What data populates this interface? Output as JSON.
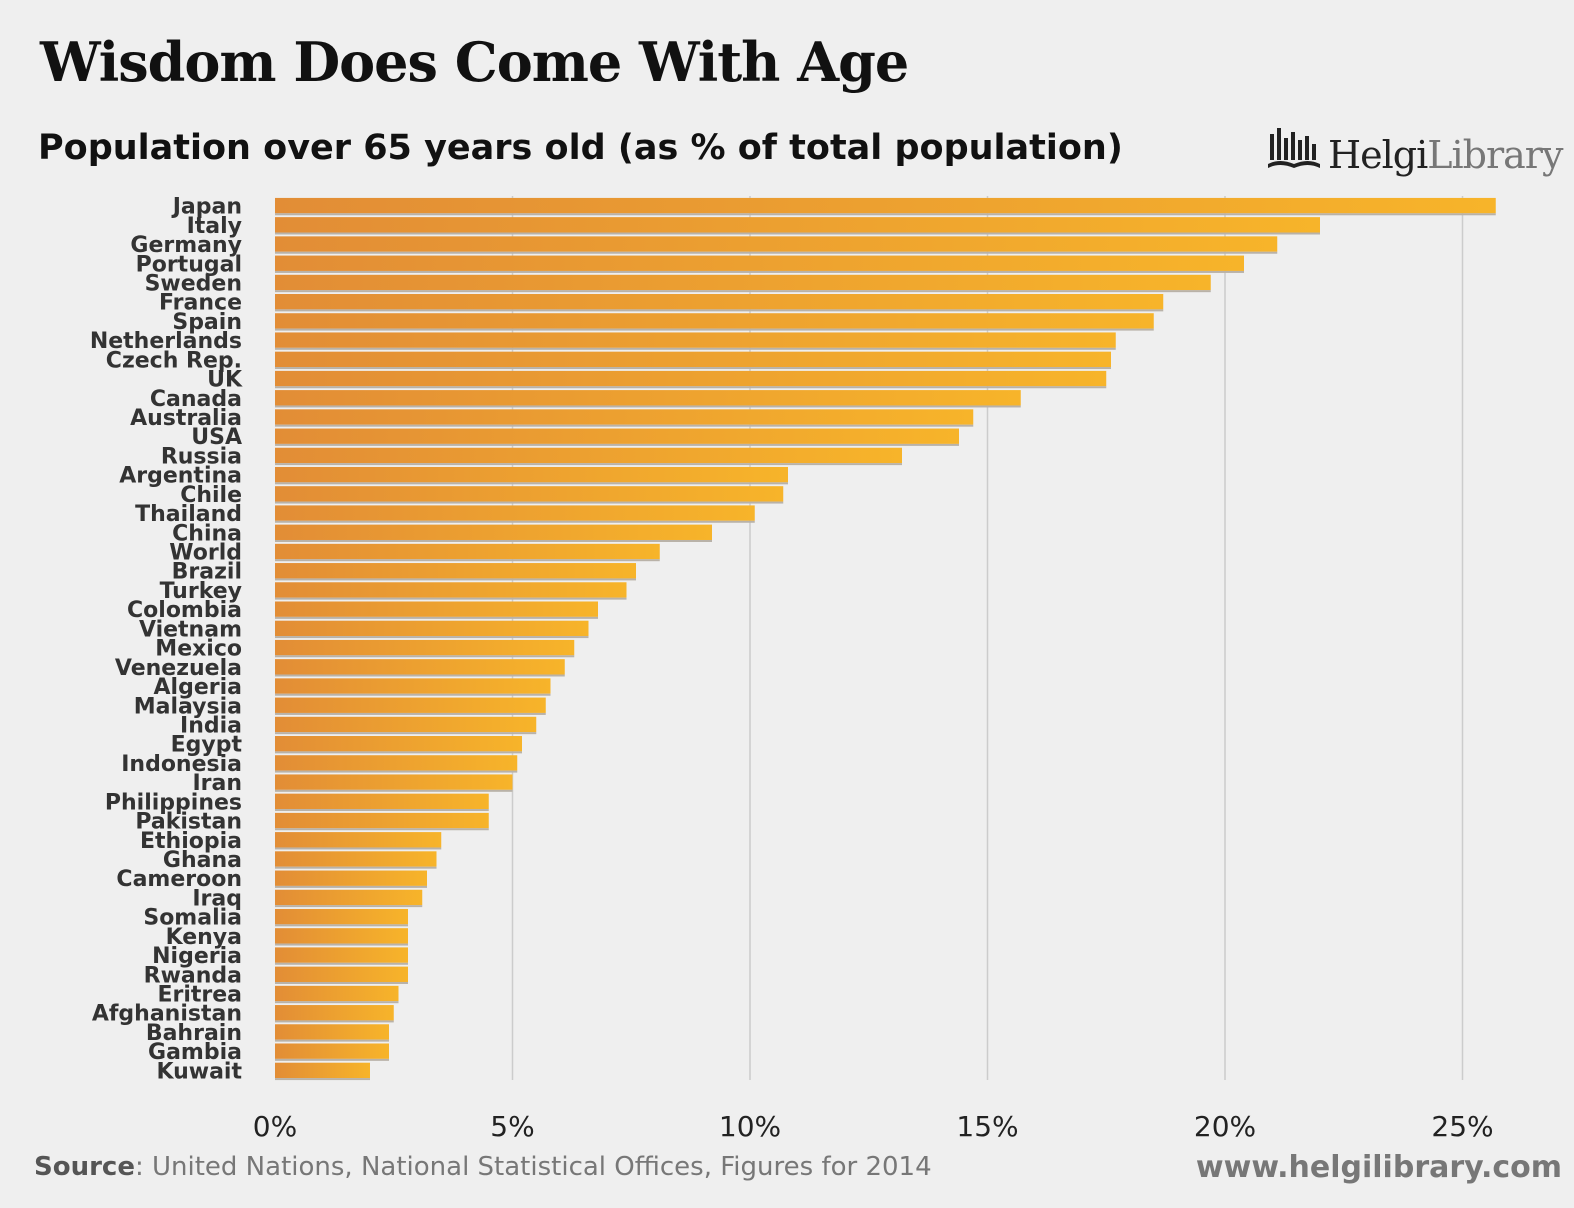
{
  "header": {
    "title": "Wisdom Does Come With Age",
    "subtitle": "Population over 65 years old (as % of total population)"
  },
  "logo": {
    "brand_strong": "Helgi",
    "brand_light": "Library"
  },
  "footer": {
    "source_label": "Source",
    "source_text": ": United Nations, National Statistical Offices, Figures for 2014",
    "website": "www.helgilibrary.com"
  },
  "colors": {
    "bar_start": "#e28d36",
    "bar_end": "#f7b42a",
    "gridline": "#cccccc",
    "background": "#efefef"
  },
  "chart_data": {
    "type": "bar",
    "orientation": "horizontal",
    "title": "Wisdom Does Come With Age",
    "subtitle": "Population over 65 years old (as % of total population)",
    "xlabel": "",
    "ylabel": "",
    "xlim": [
      0,
      26
    ],
    "ticks": [
      0,
      5,
      10,
      15,
      20,
      25
    ],
    "tick_labels": [
      "0%",
      "5%",
      "10%",
      "15%",
      "20%",
      "25%"
    ],
    "grid": true,
    "categories": [
      "Japan",
      "Italy",
      "Germany",
      "Portugal",
      "Sweden",
      "France",
      "Spain",
      "Netherlands",
      "Czech Rep.",
      "UK",
      "Canada",
      "Australia",
      "USA",
      "Russia",
      "Argentina",
      "Chile",
      "Thailand",
      "China",
      "World",
      "Brazil",
      "Turkey",
      "Colombia",
      "Vietnam",
      "Mexico",
      "Venezuela",
      "Algeria",
      "Malaysia",
      "India",
      "Egypt",
      "Indonesia",
      "Iran",
      "Philippines",
      "Pakistan",
      "Ethiopia",
      "Ghana",
      "Cameroon",
      "Iraq",
      "Somalia",
      "Kenya",
      "Nigeria",
      "Rwanda",
      "Eritrea",
      "Afghanistan",
      "Bahrain",
      "Gambia",
      "Kuwait"
    ],
    "values": [
      25.7,
      22.0,
      21.1,
      20.4,
      19.7,
      18.7,
      18.5,
      17.7,
      17.6,
      17.5,
      15.7,
      14.7,
      14.4,
      13.2,
      10.8,
      10.7,
      10.1,
      9.2,
      8.1,
      7.6,
      7.4,
      6.8,
      6.6,
      6.3,
      6.1,
      5.8,
      5.7,
      5.5,
      5.2,
      5.1,
      5.0,
      4.5,
      4.5,
      3.5,
      3.4,
      3.2,
      3.1,
      2.8,
      2.8,
      2.8,
      2.8,
      2.6,
      2.5,
      2.4,
      2.4,
      2.0
    ]
  }
}
